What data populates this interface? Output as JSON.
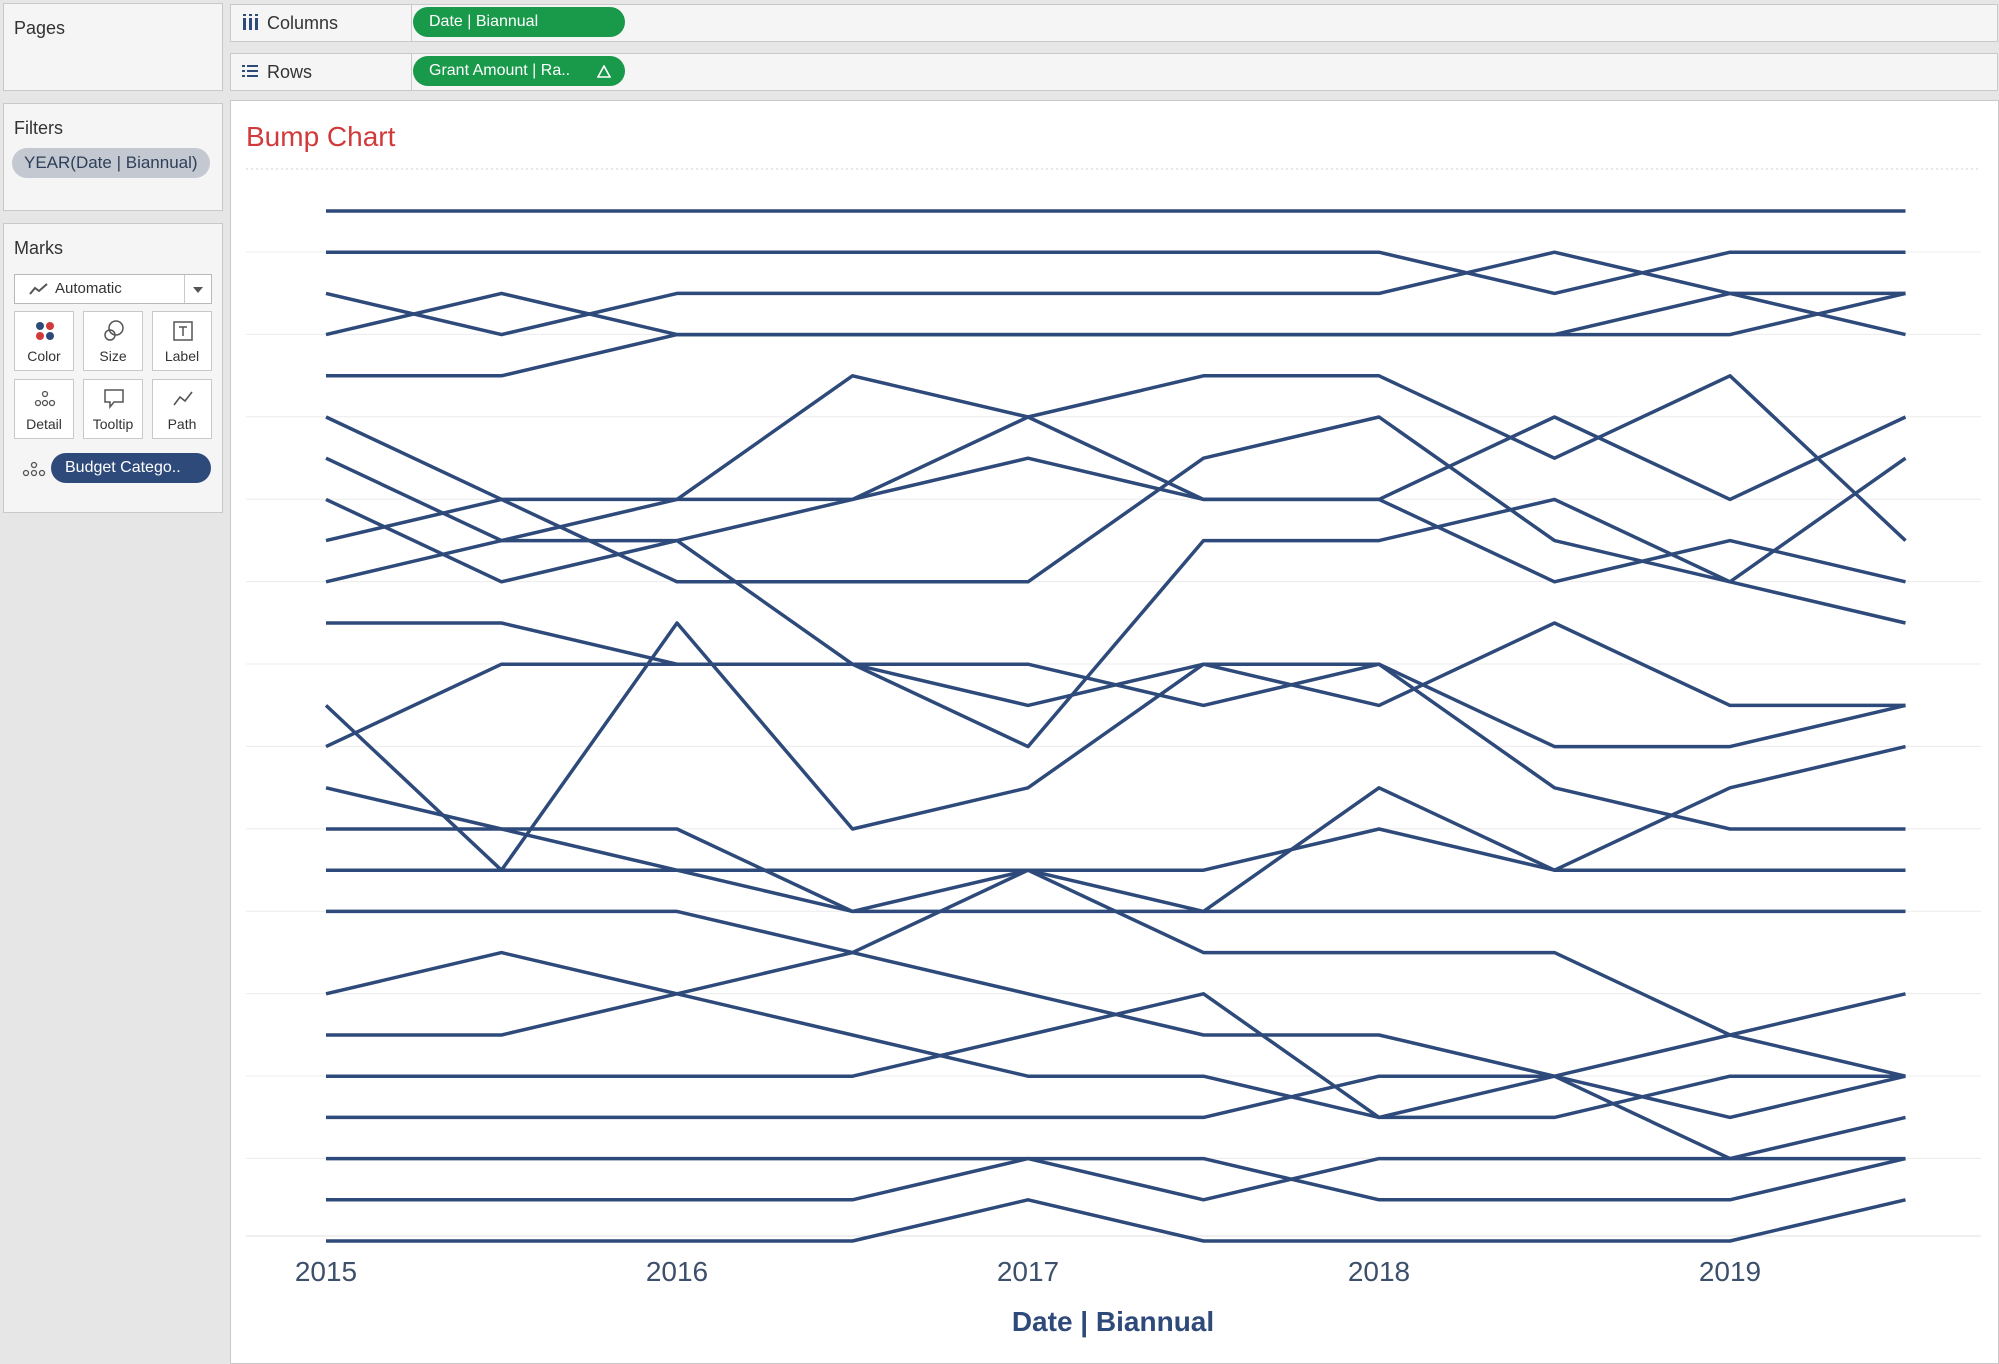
{
  "left_panel": {
    "pages_title": "Pages",
    "filters_title": "Filters",
    "filter_pill": "YEAR(Date | Biannual)",
    "marks_title": "Marks",
    "mark_type": "Automatic",
    "mark_buttons": [
      "Color",
      "Size",
      "Label",
      "Detail",
      "Tooltip",
      "Path"
    ],
    "detail_pill": "Budget Catego..",
    "colors": {
      "pill_blue": "#2e4a7a",
      "pill_grey": "#c4c9d1"
    }
  },
  "shelves": {
    "columns_label": "Columns",
    "columns_pill": "Date | Biannual",
    "rows_label": "Rows",
    "rows_pill": "Grant Amount | Ra..",
    "rows_pill_icon": "delta-icon",
    "pill_color": "#19994a"
  },
  "worksheet": {
    "title": "Bump Chart",
    "title_color": "#d13a3a"
  },
  "chart_data": {
    "type": "line",
    "xlabel": "Date | Biannual",
    "x_ticks": [
      "2015",
      "2016",
      "2017",
      "2018",
      "2019"
    ],
    "x": [
      "2015 H1",
      "2015 H2",
      "2016 H1",
      "2016 H2",
      "2017 H1",
      "2017 H2",
      "2018 H1",
      "2018 H2",
      "2019 H1",
      "2019 H2"
    ],
    "y_reversed": true,
    "ylim": [
      0.5,
      25.5
    ],
    "grid": "horizontal",
    "line_color": "#2e4a7a",
    "series": [
      {
        "values": [
          1,
          1,
          1,
          1,
          1,
          1,
          1,
          1,
          1,
          1
        ]
      },
      {
        "values": [
          2,
          2,
          2,
          2,
          2,
          2,
          2,
          3,
          2,
          2
        ]
      },
      {
        "values": [
          3,
          4,
          3,
          3,
          3,
          3,
          3,
          2,
          3,
          4
        ]
      },
      {
        "values": [
          4,
          3,
          4,
          4,
          4,
          4,
          4,
          4,
          4,
          3
        ]
      },
      {
        "values": [
          5,
          5,
          4,
          4,
          4,
          4,
          4,
          4,
          3,
          3
        ]
      },
      {
        "values": [
          7,
          9,
          8,
          5,
          6,
          5,
          5,
          7,
          5,
          9
        ]
      },
      {
        "values": [
          8,
          10,
          9,
          12,
          14,
          9,
          9,
          8,
          10,
          11
        ]
      },
      {
        "values": [
          9,
          8,
          8,
          8,
          7,
          8,
          8,
          10,
          9,
          10
        ]
      },
      {
        "values": [
          10,
          9,
          9,
          8,
          6,
          8,
          8,
          6,
          8,
          6
        ]
      },
      {
        "values": [
          6,
          8,
          10,
          10,
          10,
          7,
          6,
          9,
          10,
          7
        ]
      },
      {
        "values": [
          11,
          11,
          12,
          12,
          13,
          12,
          13,
          11,
          13,
          13
        ]
      },
      {
        "values": [
          13,
          17,
          11,
          16,
          15,
          12,
          12,
          14,
          14,
          13
        ]
      },
      {
        "values": [
          14,
          12,
          12,
          12,
          12,
          13,
          12,
          15,
          16,
          16
        ]
      },
      {
        "values": [
          15,
          16,
          17,
          17,
          17,
          17,
          16,
          17,
          17,
          17
        ]
      },
      {
        "values": [
          16,
          16,
          16,
          18,
          18,
          18,
          15,
          17,
          15,
          14
        ]
      },
      {
        "values": [
          17,
          17,
          17,
          18,
          17,
          18,
          18,
          18,
          18,
          18
        ]
      },
      {
        "values": [
          18,
          18,
          18,
          19,
          17,
          19,
          19,
          19,
          21,
          20
        ]
      },
      {
        "values": [
          20,
          19,
          20,
          19,
          20,
          21,
          21,
          22,
          21,
          22
        ]
      },
      {
        "values": [
          21,
          21,
          20,
          21,
          22,
          22,
          23,
          23,
          22,
          22
        ]
      },
      {
        "values": [
          22,
          22,
          22,
          22,
          21,
          20,
          23,
          22,
          24,
          23
        ]
      },
      {
        "values": [
          23,
          23,
          23,
          23,
          23,
          23,
          22,
          22,
          23,
          22
        ]
      },
      {
        "values": [
          24,
          24,
          24,
          24,
          24,
          25,
          24,
          24,
          24,
          24
        ]
      },
      {
        "values": [
          25,
          25,
          25,
          25,
          24,
          24,
          25,
          25,
          25,
          24
        ]
      },
      {
        "values": [
          26,
          26,
          26,
          26,
          25,
          26,
          26,
          26,
          26,
          25
        ]
      }
    ]
  }
}
